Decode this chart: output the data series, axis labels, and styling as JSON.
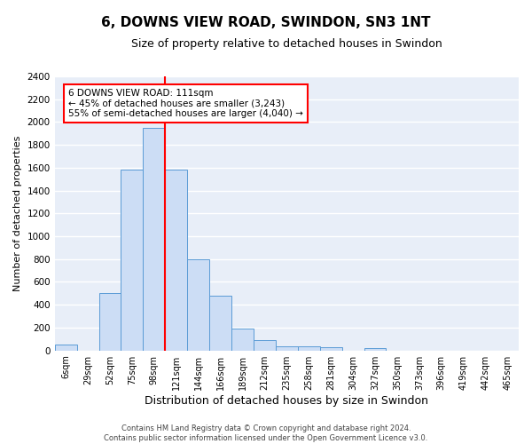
{
  "title": "6, DOWNS VIEW ROAD, SWINDON, SN3 1NT",
  "subtitle": "Size of property relative to detached houses in Swindon",
  "xlabel": "Distribution of detached houses by size in Swindon",
  "ylabel": "Number of detached properties",
  "bar_color": "#ccddf5",
  "bar_edge_color": "#5b9bd5",
  "background_color": "#e8eef8",
  "grid_color": "#ffffff",
  "categories": [
    "6sqm",
    "29sqm",
    "52sqm",
    "75sqm",
    "98sqm",
    "121sqm",
    "144sqm",
    "166sqm",
    "189sqm",
    "212sqm",
    "235sqm",
    "258sqm",
    "281sqm",
    "304sqm",
    "327sqm",
    "350sqm",
    "373sqm",
    "396sqm",
    "419sqm",
    "442sqm",
    "465sqm"
  ],
  "bar_values": [
    50,
    0,
    500,
    1580,
    1950,
    1580,
    800,
    480,
    190,
    90,
    35,
    35,
    25,
    0,
    20,
    0,
    0,
    0,
    0,
    0,
    0
  ],
  "red_line_index": 5,
  "ylim": [
    0,
    2400
  ],
  "yticks": [
    0,
    200,
    400,
    600,
    800,
    1000,
    1200,
    1400,
    1600,
    1800,
    2000,
    2200,
    2400
  ],
  "annotation_title": "6 DOWNS VIEW ROAD: 111sqm",
  "annotation_line2": "← 45% of detached houses are smaller (3,243)",
  "annotation_line3": "55% of semi-detached houses are larger (4,040) →",
  "annotation_box_color": "white",
  "annotation_edge_color": "red",
  "property_line_color": "red",
  "footnote1": "Contains HM Land Registry data © Crown copyright and database right 2024.",
  "footnote2": "Contains public sector information licensed under the Open Government Licence v3.0."
}
